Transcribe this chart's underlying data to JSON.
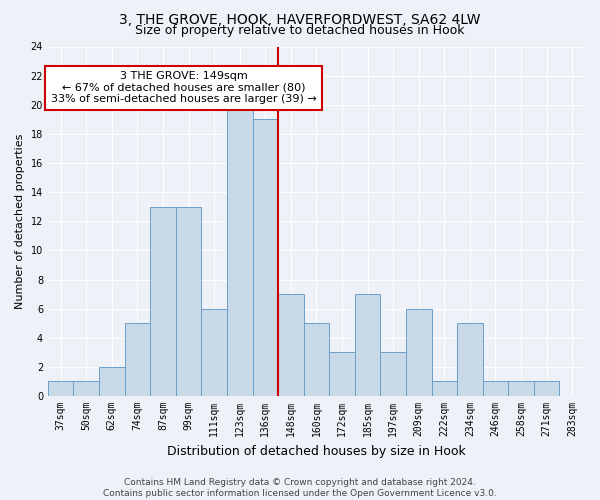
{
  "title": "3, THE GROVE, HOOK, HAVERFORDWEST, SA62 4LW",
  "subtitle": "Size of property relative to detached houses in Hook",
  "xlabel": "Distribution of detached houses by size in Hook",
  "ylabel": "Number of detached properties",
  "categories": [
    "37sqm",
    "50sqm",
    "62sqm",
    "74sqm",
    "87sqm",
    "99sqm",
    "111sqm",
    "123sqm",
    "136sqm",
    "148sqm",
    "160sqm",
    "172sqm",
    "185sqm",
    "197sqm",
    "209sqm",
    "222sqm",
    "234sqm",
    "246sqm",
    "258sqm",
    "271sqm",
    "283sqm"
  ],
  "values": [
    1,
    1,
    2,
    5,
    13,
    13,
    6,
    20,
    19,
    7,
    5,
    3,
    7,
    3,
    6,
    1,
    5,
    1,
    1,
    1,
    0
  ],
  "bar_color": "#c9d9e8",
  "bar_edge_color": "#6a9fca",
  "highlight_line_color": "#cc0000",
  "highlight_line_index": 9,
  "ylim": [
    0,
    24
  ],
  "yticks": [
    0,
    2,
    4,
    6,
    8,
    10,
    12,
    14,
    16,
    18,
    20,
    22,
    24
  ],
  "annotation_text": "3 THE GROVE: 149sqm\n← 67% of detached houses are smaller (80)\n33% of semi-detached houses are larger (39) →",
  "annotation_box_facecolor": "#ffffff",
  "annotation_box_edgecolor": "#cc0000",
  "footer_line1": "Contains HM Land Registry data © Crown copyright and database right 2024.",
  "footer_line2": "Contains public sector information licensed under the Open Government Licence v3.0.",
  "background_color": "#eef2f8",
  "grid_color": "#ffffff",
  "title_fontsize": 10,
  "subtitle_fontsize": 9,
  "xlabel_fontsize": 9,
  "ylabel_fontsize": 8,
  "tick_fontsize": 7,
  "annotation_fontsize": 8,
  "footer_fontsize": 6.5
}
